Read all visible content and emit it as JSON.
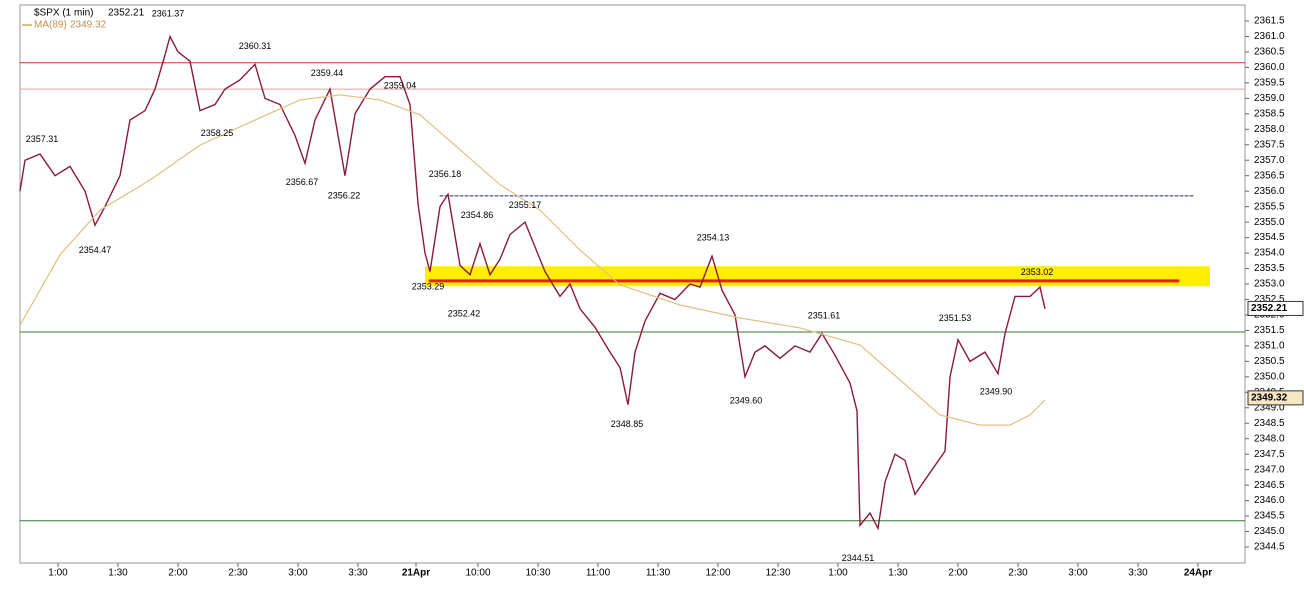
{
  "chart_data": {
    "type": "line",
    "title": "$SPX (1 min)",
    "last_price": 2352.21,
    "ma_label": "MA(89)",
    "ma_last": 2349.32,
    "xlim": [
      0,
      612.5
    ],
    "ylim": [
      2344.5,
      2361.5
    ],
    "xticks": [
      {
        "value": 19,
        "label": "1:00"
      },
      {
        "value": 49,
        "label": "1:30"
      },
      {
        "value": 79,
        "label": "2:00"
      },
      {
        "value": 109,
        "label": "2:30"
      },
      {
        "value": 139,
        "label": "3:00"
      },
      {
        "value": 169,
        "label": "3:30"
      },
      {
        "value": 198,
        "label": "21Apr"
      },
      {
        "value": 229,
        "label": "10:00"
      },
      {
        "value": 259,
        "label": "10:30"
      },
      {
        "value": 289,
        "label": "11:00"
      },
      {
        "value": 319,
        "label": "11:30"
      },
      {
        "value": 349,
        "label": "12:00"
      },
      {
        "value": 379,
        "label": "12:30"
      },
      {
        "value": 409,
        "label": "1:00"
      },
      {
        "value": 439,
        "label": "1:30"
      },
      {
        "value": 469,
        "label": "2:00"
      },
      {
        "value": 499,
        "label": "2:30"
      },
      {
        "value": 529,
        "label": "3:00"
      },
      {
        "value": 559,
        "label": "3:30"
      },
      {
        "value": 589,
        "label": "24Apr"
      }
    ],
    "yticks": [
      2361.5,
      {
        "value": 2361,
        "label": "2361.0"
      },
      2360.5,
      {
        "value": 2360,
        "label": "2360.0"
      },
      2359.5,
      {
        "value": 2359,
        "label": "2359.0"
      },
      2358.5,
      {
        "value": 2358,
        "label": "2358.0"
      },
      2357.5,
      {
        "value": 2357,
        "label": "2357.0"
      },
      2356.5,
      {
        "value": 2356,
        "label": "2356.0"
      },
      2355.5,
      {
        "value": 2355,
        "label": "2355.0"
      },
      2354.5,
      {
        "value": 2354,
        "label": "2354.0"
      },
      2353.5,
      {
        "value": 2353,
        "label": "2353.0"
      },
      2352.5,
      {
        "value": 2352,
        "label": "2352.0"
      },
      2351.5,
      {
        "value": 2351,
        "label": "2351.0"
      },
      2350.5,
      {
        "value": 2350,
        "label": "2350.0"
      },
      2349.5,
      {
        "value": 2349,
        "label": "2349.0"
      },
      2348.5,
      {
        "value": 2348,
        "label": "2348.0"
      },
      2347.5,
      {
        "value": 2347,
        "label": "2347.0"
      },
      2346.5,
      {
        "value": 2346,
        "label": "2346.0"
      },
      2345.5,
      {
        "value": 2345,
        "label": "2345.0"
      },
      2344.5
    ],
    "series": [
      {
        "name": "$SPX",
        "color": "#8b1a3a",
        "x": [
          0,
          2.5,
          10,
          17.5,
          25,
          32.5,
          37.5,
          42.5,
          50,
          55,
          62.5,
          67.5,
          72.5,
          75,
          79,
          85,
          90,
          97.5,
          102.5,
          110,
          117.5,
          122.5,
          130,
          137.5,
          142.5,
          147.5,
          155,
          162.5,
          167.5,
          175,
          182.5,
          190,
          195,
          199,
          202.5,
          205,
          210,
          214,
          220,
          225,
          230,
          235,
          240,
          245,
          252.5,
          257.5,
          262.5,
          270,
          275,
          280,
          287.5,
          295,
          300,
          304,
          307.5,
          312.5,
          320,
          327.5,
          335,
          340,
          346,
          351,
          357.5,
          362.5,
          367.5,
          372.5,
          380,
          387.5,
          395,
          401,
          407.5,
          415,
          418.5,
          420,
          425,
          429,
          432.5,
          437.5,
          442.5,
          447.5,
          455,
          462.5,
          465,
          469,
          475,
          482.5,
          489,
          492.5,
          497.5,
          505,
          510,
          512.5
        ],
        "values": [
          2356.0,
          2357.0,
          2357.2,
          2356.5,
          2356.8,
          2356.0,
          2354.9,
          2355.5,
          2356.5,
          2358.3,
          2358.6,
          2359.3,
          2360.4,
          2361.0,
          2360.5,
          2360.2,
          2358.6,
          2358.8,
          2359.3,
          2359.6,
          2360.1,
          2359.0,
          2358.8,
          2357.8,
          2356.9,
          2358.3,
          2359.3,
          2356.5,
          2358.5,
          2359.3,
          2359.7,
          2359.7,
          2358.8,
          2355.6,
          2354.0,
          2353.4,
          2355.5,
          2355.9,
          2353.6,
          2353.3,
          2354.3,
          2353.3,
          2353.8,
          2354.6,
          2355.0,
          2354.2,
          2353.4,
          2352.6,
          2353.0,
          2352.2,
          2351.6,
          2350.8,
          2350.3,
          2349.1,
          2350.8,
          2351.8,
          2352.7,
          2352.5,
          2353.0,
          2352.9,
          2353.9,
          2352.8,
          2352.0,
          2350.0,
          2350.8,
          2351.0,
          2350.6,
          2351.0,
          2350.8,
          2351.4,
          2350.7,
          2349.8,
          2348.9,
          2345.2,
          2345.6,
          2345.1,
          2346.6,
          2347.5,
          2347.3,
          2346.2,
          2346.9,
          2347.6,
          2350.0,
          2351.2,
          2350.5,
          2350.8,
          2350.1,
          2351.4,
          2352.6,
          2352.6,
          2352.9,
          2352.2
        ]
      },
      {
        "name": "MA(89)",
        "color": "#e0c080",
        "x": [
          0,
          20,
          40,
          65,
          90,
          120,
          140,
          160,
          180,
          200,
          220,
          240,
          260,
          280,
          300,
          330,
          360,
          390,
          420,
          440,
          460,
          480,
          495,
          505,
          512.5
        ],
        "values": [
          2351.67,
          2353.94,
          2355.39,
          2356.36,
          2357.49,
          2358.37,
          2358.95,
          2359.11,
          2358.95,
          2358.47,
          2357.34,
          2356.21,
          2355.39,
          2354.1,
          2352.97,
          2352.32,
          2351.9,
          2351.58,
          2351.03,
          2349.9,
          2348.77,
          2348.44,
          2348.44,
          2348.77,
          2349.25
        ]
      }
    ],
    "levels": [
      {
        "value": 2360.15,
        "color": "#cc3333",
        "width": 1,
        "dash": "none"
      },
      {
        "value": 2359.3,
        "color": "#e8a0a0",
        "width": 1,
        "dash": "none"
      },
      {
        "value": 2351.45,
        "color": "#2e7d32",
        "width": 1,
        "dash": "none"
      },
      {
        "value": 2345.35,
        "color": "#2e7d32",
        "width": 1,
        "dash": "none"
      },
      {
        "value": 2355.85,
        "color": "#1a237e",
        "width": 1,
        "dash": "3,2",
        "x": [
          210,
          587.5
        ]
      },
      {
        "value": 2353.25,
        "color": "#ffee00",
        "width": 20,
        "dash": "none",
        "x": [
          202.5,
          595
        ]
      },
      {
        "value": 2353.1,
        "color": "#e0202a",
        "width": 3,
        "dash": "none",
        "x": [
          205,
          579
        ]
      }
    ],
    "annotations": [
      {
        "label": "2361.37",
        "x": 74,
        "y": 2361.37,
        "position": "above"
      },
      {
        "label": "2360.31",
        "x": 117.5,
        "y": 2360.31,
        "position": "above"
      },
      {
        "label": "2359.44",
        "x": 153.5,
        "y": 2359.44,
        "position": "above"
      },
      {
        "label": "2359.04",
        "x": 190,
        "y": 2359.04,
        "position": "above"
      },
      {
        "label": "2357.31",
        "x": 11,
        "y": 2357.31,
        "position": "above"
      },
      {
        "label": "2358.25",
        "x": 98.5,
        "y": 2358.25,
        "position": "below"
      },
      {
        "label": "2356.67",
        "x": 141,
        "y": 2356.67,
        "position": "below"
      },
      {
        "label": "2356.22",
        "x": 162,
        "y": 2356.22,
        "position": "below"
      },
      {
        "label": "2354.47",
        "x": 37.5,
        "y": 2354.47,
        "position": "below"
      },
      {
        "label": "2356.18",
        "x": 212.5,
        "y": 2356.18,
        "position": "above"
      },
      {
        "label": "2354.86",
        "x": 228.5,
        "y": 2354.86,
        "position": "above"
      },
      {
        "label": "2355.17",
        "x": 252.5,
        "y": 2355.17,
        "position": "above"
      },
      {
        "label": "2353.29",
        "x": 204,
        "y": 2353.29,
        "position": "below"
      },
      {
        "label": "2352.42",
        "x": 222,
        "y": 2352.42,
        "position": "below"
      },
      {
        "label": "2354.13",
        "x": 346.5,
        "y": 2354.13,
        "position": "above"
      },
      {
        "label": "2348.85",
        "x": 303.5,
        "y": 2348.85,
        "position": "below"
      },
      {
        "label": "2349.60",
        "x": 363,
        "y": 2349.6,
        "position": "below"
      },
      {
        "label": "2351.61",
        "x": 402,
        "y": 2351.61,
        "position": "above"
      },
      {
        "label": "2351.53",
        "x": 467.5,
        "y": 2351.53,
        "position": "above"
      },
      {
        "label": "2349.90",
        "x": 488,
        "y": 2349.9,
        "position": "below"
      },
      {
        "label": "2353.02",
        "x": 508.5,
        "y": 2353.02,
        "position": "above"
      },
      {
        "label": "2344.51",
        "x": 419,
        "y": 2344.51,
        "position": "below"
      }
    ]
  }
}
